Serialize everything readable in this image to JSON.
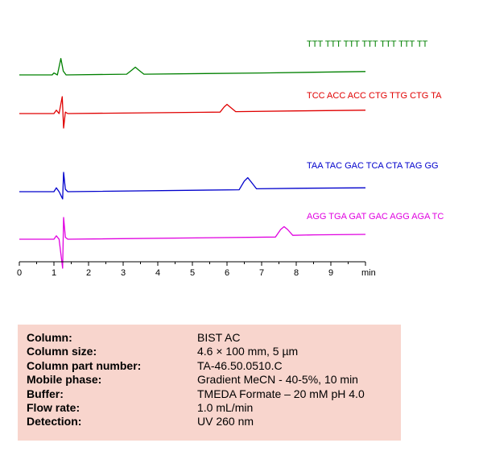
{
  "chart_data": {
    "type": "line",
    "xlabel": "min",
    "xlim": [
      0,
      10
    ],
    "x_ticks": [
      "0",
      "1",
      "2",
      "3",
      "4",
      "5",
      "6",
      "7",
      "8",
      "9"
    ],
    "grid": false,
    "series": [
      {
        "name": "TTT TTT TTT TTT TTT TTT TT",
        "color": "#008000",
        "peak_time": 3.35,
        "points": [
          [
            0,
            0
          ],
          [
            0.95,
            0
          ],
          [
            1.0,
            0.4
          ],
          [
            1.1,
            0
          ],
          [
            1.2,
            3.4
          ],
          [
            1.27,
            0.8
          ],
          [
            1.35,
            0
          ],
          [
            3.1,
            0.15
          ],
          [
            3.25,
            1.0
          ],
          [
            3.35,
            1.6
          ],
          [
            3.45,
            1.0
          ],
          [
            3.6,
            0.15
          ],
          [
            7,
            0.4
          ],
          [
            10,
            0.7
          ]
        ]
      },
      {
        "name": "TCC ACC ACC CTG TTG CTG TA",
        "color": "#e00000",
        "peak_time": 6.0,
        "points": [
          [
            0,
            0
          ],
          [
            1.0,
            0
          ],
          [
            1.07,
            0.7
          ],
          [
            1.15,
            0
          ],
          [
            1.24,
            3.5
          ],
          [
            1.28,
            -3.0
          ],
          [
            1.33,
            0.3
          ],
          [
            1.4,
            0
          ],
          [
            5.8,
            0.3
          ],
          [
            5.92,
            1.4
          ],
          [
            6.0,
            1.9
          ],
          [
            6.1,
            1.3
          ],
          [
            6.25,
            0.4
          ],
          [
            8,
            0.55
          ],
          [
            10,
            0.7
          ]
        ]
      },
      {
        "name": "TAA TAC GAC TCA CTA TAG GG",
        "color": "#0000cc",
        "peak_time": 6.6,
        "points": [
          [
            0,
            0
          ],
          [
            1.0,
            0
          ],
          [
            1.07,
            0.8
          ],
          [
            1.15,
            0
          ],
          [
            1.25,
            -1.5
          ],
          [
            1.28,
            4.0
          ],
          [
            1.33,
            0.5
          ],
          [
            1.4,
            0
          ],
          [
            6.35,
            0.4
          ],
          [
            6.5,
            2.2
          ],
          [
            6.6,
            2.9
          ],
          [
            6.7,
            2.0
          ],
          [
            6.85,
            0.6
          ],
          [
            8,
            0.7
          ],
          [
            10,
            0.8
          ]
        ]
      },
      {
        "name": "AGG TGA GAT GAC AGG AGA TC",
        "color": "#e000e0",
        "peak_time": 7.65,
        "points": [
          [
            0,
            0
          ],
          [
            1.0,
            0
          ],
          [
            1.07,
            0.7
          ],
          [
            1.15,
            0
          ],
          [
            1.25,
            -6.0
          ],
          [
            1.28,
            4.5
          ],
          [
            1.33,
            0.4
          ],
          [
            1.4,
            0
          ],
          [
            7.4,
            0.45
          ],
          [
            7.55,
            2.0
          ],
          [
            7.65,
            2.6
          ],
          [
            7.75,
            2.0
          ],
          [
            7.9,
            0.8
          ],
          [
            8.5,
            0.9
          ],
          [
            10,
            1.0
          ]
        ]
      }
    ]
  },
  "info": {
    "rows": [
      {
        "label": "Column:",
        "value": "BIST AC"
      },
      {
        "label": "Column size:",
        "value": "4.6 × 100 mm, 5 µm"
      },
      {
        "label": "Column part number:",
        "value": "TA-46.50.0510.C"
      },
      {
        "label": "Mobile phase:",
        "value": "Gradient  MeCN  - 40-5%, 10 min"
      },
      {
        "label": "Buffer:",
        "value": "TMEDA Formate  – 20 mM  pH 4.0"
      },
      {
        "label": "Flow rate:",
        "value": "1.0 mL/min"
      },
      {
        "label": "Detection:",
        "value": "UV 260 nm"
      }
    ]
  }
}
